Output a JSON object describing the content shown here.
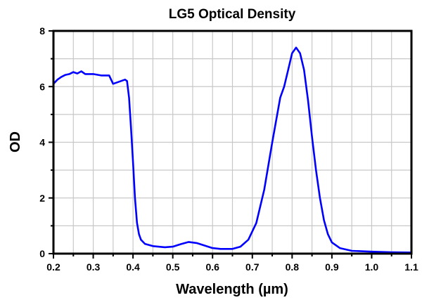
{
  "chart_data": {
    "type": "line",
    "title": "LG5 Optical Density",
    "xlabel": "Wavelength (µm)",
    "ylabel": "OD",
    "xlim": [
      0.2,
      1.1
    ],
    "ylim": [
      0,
      8
    ],
    "xticks": [
      "0.2",
      "0.3",
      "0.4",
      "0.5",
      "0.6",
      "0.7",
      "0.8",
      "0.9",
      "1.0",
      "1.1"
    ],
    "yticks": [
      "0",
      "2",
      "4",
      "6",
      "8"
    ],
    "grid": true,
    "line_color": "#0000ff",
    "series": [
      {
        "x": [
          0.2,
          0.21,
          0.22,
          0.23,
          0.24,
          0.25,
          0.26,
          0.27,
          0.28,
          0.3,
          0.32,
          0.34,
          0.35,
          0.36,
          0.37,
          0.38,
          0.385,
          0.39,
          0.395,
          0.4,
          0.405,
          0.41,
          0.415,
          0.42,
          0.43,
          0.45,
          0.48,
          0.5,
          0.52,
          0.54,
          0.56,
          0.58,
          0.6,
          0.62,
          0.65,
          0.67,
          0.69,
          0.71,
          0.73,
          0.75,
          0.77,
          0.78,
          0.79,
          0.8,
          0.81,
          0.82,
          0.83,
          0.84,
          0.85,
          0.86,
          0.87,
          0.88,
          0.89,
          0.9,
          0.92,
          0.95,
          1.0,
          1.05,
          1.1
        ],
        "y": [
          6.1,
          6.25,
          6.35,
          6.42,
          6.45,
          6.52,
          6.47,
          6.55,
          6.45,
          6.45,
          6.4,
          6.4,
          6.1,
          6.15,
          6.2,
          6.25,
          6.2,
          5.6,
          4.5,
          3.3,
          2.0,
          1.1,
          0.7,
          0.5,
          0.35,
          0.27,
          0.23,
          0.25,
          0.34,
          0.42,
          0.38,
          0.29,
          0.2,
          0.17,
          0.17,
          0.25,
          0.5,
          1.1,
          2.3,
          4.0,
          5.6,
          6.0,
          6.6,
          7.2,
          7.4,
          7.2,
          6.6,
          5.5,
          4.2,
          3.0,
          2.0,
          1.2,
          0.7,
          0.4,
          0.2,
          0.1,
          0.07,
          0.05,
          0.04
        ]
      }
    ]
  }
}
